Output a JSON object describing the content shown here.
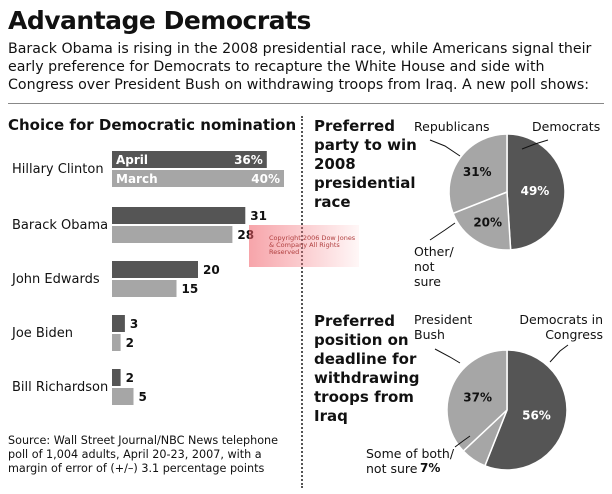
{
  "title": "Advantage Democrats",
  "subtitle": "Barack Obama is rising in the 2008 presidential race, while Americans signal their early preference for Democrats to recapture the White House and side with Congress over President Bush on withdrawing troops from Iraq. A new poll shows:",
  "source": "Source: Wall Street Journal/NBC News telephone poll of 1,004 adults, April 20-23, 2007, with a margin of error of (+/–) 3.1 percentage points",
  "watermark_text": "Copyright 2006 Dow Jones & Company All Rights Reserved",
  "colors": {
    "april": "#555555",
    "march": "#a6a6a6",
    "dark": "#555555",
    "light": "#a6a6a6"
  },
  "chart_data": [
    {
      "type": "bar",
      "orientation": "horizontal",
      "title": "Choice for Democratic nomination",
      "categories": [
        "Hillary Clinton",
        "Barack Obama",
        "John Edwards",
        "Joe Biden",
        "Bill Richardson"
      ],
      "series": [
        {
          "name": "April",
          "values": [
            36,
            31,
            20,
            3,
            2
          ]
        },
        {
          "name": "March",
          "values": [
            40,
            28,
            15,
            2,
            5
          ]
        }
      ],
      "value_suffix_first_row": "%"
    },
    {
      "type": "pie",
      "title": "Preferred party to win 2008 presidential race",
      "slices": [
        {
          "label": "Democrats",
          "value": 49,
          "display": "49%"
        },
        {
          "label": "Other/ not sure",
          "value": 20,
          "display": "20%"
        },
        {
          "label": "Republicans",
          "value": 31,
          "display": "31%"
        }
      ]
    },
    {
      "type": "pie",
      "title": "Preferred position on deadline for withdrawing troops from Iraq",
      "slices": [
        {
          "label": "Democrats in Congress",
          "value": 56,
          "display": "56%"
        },
        {
          "label": "Some of both/ not sure",
          "value": 7,
          "display": "7%"
        },
        {
          "label": "President Bush",
          "value": 37,
          "display": "37%"
        }
      ]
    }
  ]
}
